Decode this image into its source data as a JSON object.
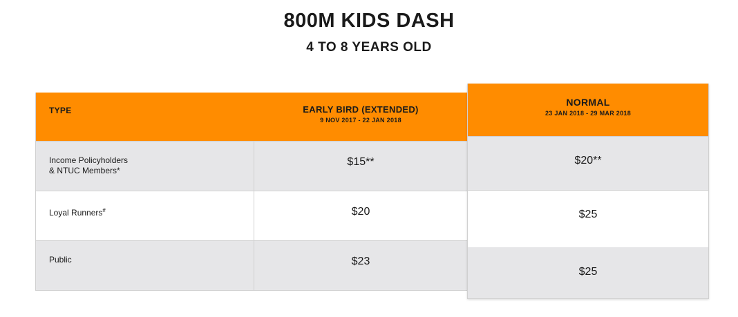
{
  "header": {
    "title": "800M KIDS DASH",
    "subtitle": "4 TO 8 YEARS OLD"
  },
  "left_table": {
    "type_label": "TYPE",
    "early_bird_label": "EARLY BIRD (EXTENDED)",
    "early_bird_dates": "9 NOV 2017 - 22 JAN 2018",
    "rows": [
      {
        "type_line1": "Income Policyholders",
        "type_line2": "& NTUC Members*",
        "price": "$15**"
      },
      {
        "type_line1": "Loyal Runners",
        "type_sup": "#",
        "price": "$20"
      },
      {
        "type_line1": "Public",
        "price": "$23"
      }
    ]
  },
  "right_table": {
    "normal_label": "NORMAL",
    "normal_dates": "23 JAN 2018 - 29 MAR 2018",
    "prices": [
      "$20**",
      "$25",
      "$25"
    ]
  },
  "colors": {
    "accent_orange": "#ff8c00",
    "row_grey": "#e6e6e8",
    "border": "#d0d0d0"
  }
}
